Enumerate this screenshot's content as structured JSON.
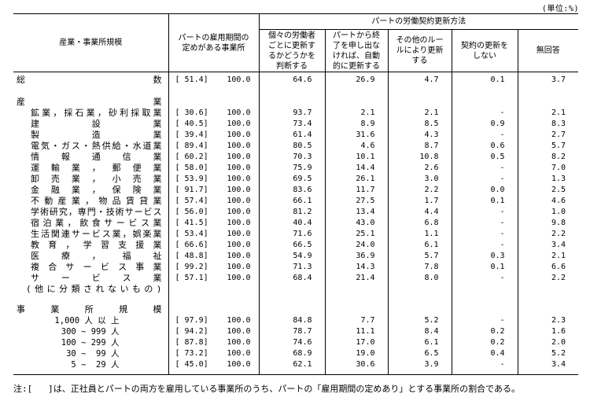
{
  "unit_label": "(単位:%)",
  "note": "注:[   ]は、正社員とパートの両方を雇用している事業所のうち、パートの「雇用期間の定めあり」とする事業所の割合である。",
  "header": {
    "col_industry": "産業・事業所規模",
    "col_fixed_term": "パートの雇用期間の\n定めがある事業所",
    "banner": "パートの労働契約更新方法",
    "methods": [
      "個々の労働者\nごとに更新す\nるかどうかを\n判断する",
      "パートから終\n了を申し出な\nければ、自動\n的に更新する",
      "その他のルー\nルにより更新\nする",
      "契約の更新を\nしない",
      "無回答"
    ]
  },
  "rows": [
    {
      "type": "total",
      "label": "総数",
      "bracket": "[ 51.4]",
      "total": "100.0",
      "values": [
        "64.6",
        "26.9",
        "4.7",
        "0.1",
        "3.7"
      ]
    },
    {
      "type": "section",
      "label": "産業"
    },
    {
      "type": "industry",
      "label": "鉱業，採石業，砂利採取業",
      "bracket": "[ 30.6]",
      "total": "100.0",
      "values": [
        "93.7",
        "2.1",
        "2.1",
        "-",
        "2.1"
      ]
    },
    {
      "type": "industry",
      "label": "建設業",
      "bracket": "[ 40.5]",
      "total": "100.0",
      "values": [
        "73.4",
        "8.9",
        "8.5",
        "0.9",
        "8.3"
      ]
    },
    {
      "type": "industry",
      "label": "製造業",
      "bracket": "[ 39.4]",
      "total": "100.0",
      "values": [
        "61.4",
        "31.6",
        "4.3",
        "-",
        "2.7"
      ]
    },
    {
      "type": "industry",
      "label": "電気・ガス・熱供給・水道業",
      "bracket": "[ 89.4]",
      "total": "100.0",
      "values": [
        "80.5",
        "4.6",
        "8.7",
        "0.6",
        "5.7"
      ]
    },
    {
      "type": "industry",
      "label": "情報通信業",
      "bracket": "[ 60.2]",
      "total": "100.0",
      "values": [
        "70.3",
        "10.1",
        "10.8",
        "0.5",
        "8.2"
      ]
    },
    {
      "type": "industry",
      "label": "運輸業，郵便業",
      "bracket": "[ 58.0]",
      "total": "100.0",
      "values": [
        "75.9",
        "14.4",
        "2.6",
        "-",
        "7.0"
      ]
    },
    {
      "type": "industry",
      "label": "卸売業，小売業",
      "bracket": "[ 53.9]",
      "total": "100.0",
      "values": [
        "69.5",
        "26.1",
        "3.0",
        "-",
        "1.3"
      ]
    },
    {
      "type": "industry",
      "label": "金融業，保険業",
      "bracket": "[ 91.7]",
      "total": "100.0",
      "values": [
        "83.6",
        "11.7",
        "2.2",
        "0.0",
        "2.5"
      ]
    },
    {
      "type": "industry",
      "label": "不動産業，物品賃貸業",
      "bracket": "[ 57.4]",
      "total": "100.0",
      "values": [
        "66.1",
        "27.5",
        "1.7",
        "0.1",
        "4.6"
      ]
    },
    {
      "type": "industry",
      "label": "学術研究，専門・技術サービス",
      "bracket": "[ 56.0]",
      "total": "100.0",
      "values": [
        "81.2",
        "13.4",
        "4.4",
        "-",
        "1.0"
      ]
    },
    {
      "type": "industry",
      "label": "宿泊業，飲食サービス業",
      "bracket": "[ 41.5]",
      "total": "100.0",
      "values": [
        "40.4",
        "43.0",
        "6.8",
        "-",
        "9.8"
      ]
    },
    {
      "type": "industry",
      "label": "生活関連サービス業，娯楽業",
      "bracket": "[ 53.4]",
      "total": "100.0",
      "values": [
        "71.6",
        "25.1",
        "1.1",
        "-",
        "2.2"
      ]
    },
    {
      "type": "industry",
      "label": "教育，学習支援業",
      "bracket": "[ 66.6]",
      "total": "100.0",
      "values": [
        "66.5",
        "24.0",
        "6.1",
        "-",
        "3.4"
      ]
    },
    {
      "type": "industry",
      "label": "医療，福祉",
      "bracket": "[ 48.8]",
      "total": "100.0",
      "values": [
        "54.9",
        "36.9",
        "5.7",
        "0.3",
        "2.1"
      ]
    },
    {
      "type": "industry",
      "label": "複合サービス事業",
      "bracket": "[ 99.2]",
      "total": "100.0",
      "values": [
        "71.3",
        "14.3",
        "7.8",
        "0.1",
        "6.6"
      ]
    },
    {
      "type": "industry",
      "label": "サービス業",
      "bracket": "[ 57.1]",
      "total": "100.0",
      "values": [
        "68.4",
        "21.4",
        "8.0",
        "-",
        "2.2"
      ]
    },
    {
      "type": "cont",
      "label": "(他に分類されないもの)"
    },
    {
      "type": "section2",
      "label": "事業所規模"
    },
    {
      "type": "size",
      "label": "1,000 人 以 上",
      "bracket": "[ 97.9]",
      "total": "100.0",
      "values": [
        "84.8",
        "7.7",
        "5.2",
        "-",
        "2.3"
      ]
    },
    {
      "type": "size",
      "label": "300 ~ 999 人",
      "bracket": "[ 94.2]",
      "total": "100.0",
      "values": [
        "78.7",
        "11.1",
        "8.4",
        "0.2",
        "1.6"
      ]
    },
    {
      "type": "size",
      "label": "100 ~ 299 人",
      "bracket": "[ 87.8]",
      "total": "100.0",
      "values": [
        "74.6",
        "17.0",
        "6.1",
        "0.2",
        "2.0"
      ]
    },
    {
      "type": "size",
      "label": " 30 ~  99 人",
      "bracket": "[ 73.2]",
      "total": "100.0",
      "values": [
        "68.9",
        "19.0",
        "6.5",
        "0.4",
        "5.2"
      ]
    },
    {
      "type": "size",
      "label": "  5 ~  29 人",
      "bracket": "[ 45.0]",
      "total": "100.0",
      "values": [
        "62.1",
        "30.6",
        "3.9",
        "-",
        "3.4"
      ]
    }
  ]
}
